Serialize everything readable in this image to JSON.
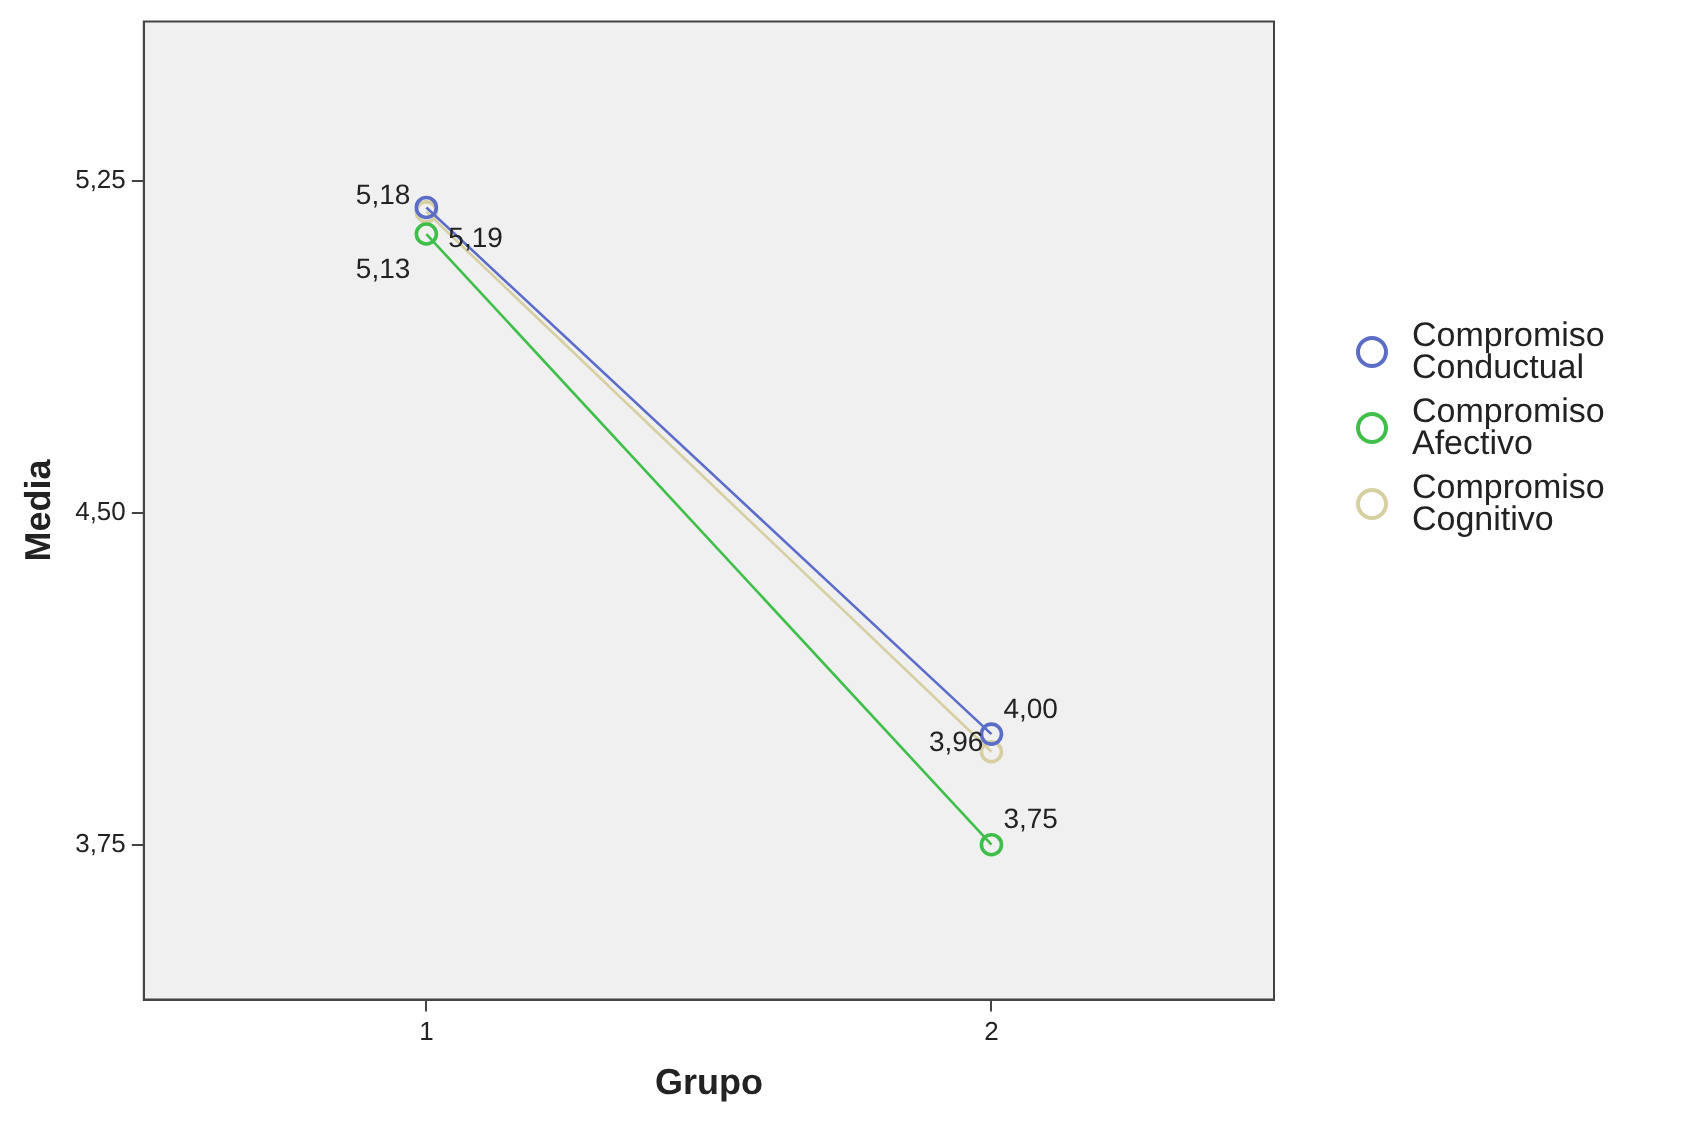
{
  "chart_data": {
    "type": "line",
    "xlabel": "Grupo",
    "ylabel": "Media",
    "categories": [
      "1",
      "2"
    ],
    "series": [
      {
        "name": "Compromiso Conductual",
        "color": "#5b6dc8",
        "values": [
          5.19,
          4.0
        ],
        "value_labels": [
          "5,19",
          "4,00"
        ]
      },
      {
        "name": "Compromiso Afectivo",
        "color": "#3fbf4a",
        "values": [
          5.13,
          3.75
        ],
        "value_labels": [
          "5,13",
          "3,75"
        ]
      },
      {
        "name": "Compromiso Cognitivo",
        "color": "#d6cfa2",
        "values": [
          5.18,
          3.96
        ],
        "value_labels": [
          "5,18",
          "3,96"
        ]
      }
    ],
    "ylim": [
      3.4,
      5.61
    ],
    "yticks": [
      {
        "value": 3.75,
        "label": "3,75"
      },
      {
        "value": 4.5,
        "label": "4,50"
      },
      {
        "value": 5.25,
        "label": "5,25"
      }
    ],
    "grid": false,
    "legend": "right",
    "marker": "circle",
    "line_style": "solid"
  }
}
